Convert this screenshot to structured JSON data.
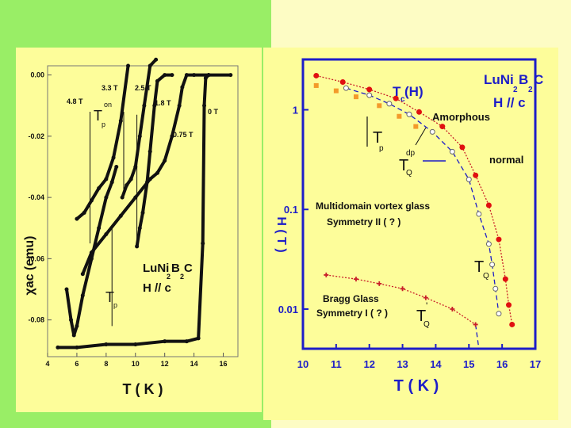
{
  "colors": {
    "left_bg": "#99ee66",
    "right_bg": "#fdfcc4",
    "panel": "#fdfd9a",
    "blue": "#1d1dc8",
    "red": "#e01010",
    "orange": "#f39a2a",
    "dark_red": "#c8202a",
    "black": "#111111"
  },
  "chart_data": [
    {
      "type": "line",
      "panel": "left",
      "ylabel": "χac (emu)",
      "xlabel": "T ( K )",
      "xlim": [
        4,
        17
      ],
      "ylim": [
        -0.092,
        0.003
      ],
      "xticks": [
        4,
        6,
        8,
        10,
        12,
        14,
        16
      ],
      "yticks": [
        0.0,
        -0.02,
        -0.04,
        -0.06,
        -0.08
      ],
      "ytick_labels": [
        "0.00",
        "-0.02",
        "-0.04",
        "-0.06",
        "-0.08"
      ],
      "series": [
        {
          "name": "0 T",
          "x": [
            4.7,
            6,
            8,
            10,
            12,
            13.5,
            14.3,
            14.6,
            14.7,
            14.8,
            15,
            16.5
          ],
          "y": [
            -0.089,
            -0.089,
            -0.088,
            -0.088,
            -0.087,
            -0.087,
            -0.086,
            -0.055,
            -0.01,
            -0.001,
            0.0,
            0.0
          ]
        },
        {
          "name": "0.75 T",
          "x": [
            6.4,
            7,
            8,
            9,
            10,
            11,
            11.5,
            12,
            12.5,
            13,
            13.2,
            13.5,
            14,
            15
          ],
          "y": [
            -0.065,
            -0.058,
            -0.052,
            -0.046,
            -0.04,
            -0.034,
            -0.032,
            -0.028,
            -0.02,
            -0.01,
            -0.004,
            0.0,
            0.0,
            0.0
          ]
        },
        {
          "name": "1.8 T",
          "x": [
            10.1,
            10.3,
            10.5,
            10.8,
            11,
            11.3,
            11.5,
            12,
            12.5
          ],
          "y": [
            -0.056,
            -0.05,
            -0.045,
            -0.035,
            -0.025,
            -0.01,
            -0.002,
            0.0,
            0.0
          ]
        },
        {
          "name": "2.5 T",
          "x": [
            9.1,
            9.4,
            9.7,
            10,
            10.3,
            10.6,
            11,
            11.4
          ],
          "y": [
            -0.04,
            -0.036,
            -0.034,
            -0.03,
            -0.02,
            -0.01,
            0.003,
            0.005
          ]
        },
        {
          "name": "3.3 T",
          "x": [
            6,
            6.5,
            7,
            7.5,
            8,
            8.5,
            9,
            9.5
          ],
          "y": [
            -0.047,
            -0.045,
            -0.041,
            -0.037,
            -0.034,
            -0.027,
            -0.015,
            0.003
          ]
        },
        {
          "name": "4.8 T",
          "x": [
            5.3,
            5.6,
            5.8,
            6,
            6.4,
            7,
            7.5,
            8,
            8.4,
            8.7
          ],
          "y": [
            -0.07,
            -0.08,
            -0.085,
            -0.082,
            -0.072,
            -0.06,
            -0.05,
            -0.04,
            -0.035,
            -0.03
          ]
        }
      ],
      "annotations": [
        "4.8 T",
        "3.3 T",
        "2.5 T",
        "1.8 T",
        "0.75 T",
        "0 T",
        "T",
        "p",
        "on",
        "T",
        "p",
        "LuNi",
        "2",
        "B",
        "2",
        "C",
        "H // c"
      ]
    },
    {
      "type": "scatter",
      "panel": "right",
      "ylabel": "H ( T )",
      "xlabel": "T ( K )",
      "xlim": [
        10,
        17
      ],
      "ylim_log": [
        0.004,
        3.2
      ],
      "xticks": [
        10,
        11,
        12,
        13,
        14,
        15,
        16,
        17
      ],
      "yticks": [
        1,
        0.1,
        0.01
      ],
      "ytick_labels": [
        "1",
        "0.1",
        "0.01"
      ],
      "series": [
        {
          "name": "Tc(H) red",
          "x": [
            10.4,
            11.2,
            12.0,
            12.8,
            13.5,
            14.2,
            14.8,
            15.2,
            15.6,
            15.9,
            16.1,
            16.2,
            16.3
          ],
          "y": [
            2.2,
            1.9,
            1.6,
            1.3,
            0.95,
            0.68,
            0.42,
            0.22,
            0.11,
            0.05,
            0.02,
            0.011,
            0.007
          ]
        },
        {
          "name": "orange squares",
          "x": [
            10.4,
            11.0,
            11.6,
            12.3,
            12.9,
            13.4
          ],
          "y": [
            1.75,
            1.55,
            1.35,
            1.1,
            0.86,
            0.68
          ]
        },
        {
          "name": "open symbols",
          "x": [
            11.3,
            12.0,
            12.6,
            13.2,
            13.9,
            14.5,
            15.0,
            15.3,
            15.6,
            15.7,
            15.8,
            15.9
          ],
          "y": [
            1.65,
            1.4,
            1.15,
            0.9,
            0.6,
            0.38,
            0.2,
            0.09,
            0.045,
            0.028,
            0.016,
            0.009
          ]
        },
        {
          "name": "Bragg glass boundary",
          "x": [
            10.7,
            11.6,
            12.3,
            13.0,
            13.7,
            14.5,
            15.2
          ],
          "y": [
            0.022,
            0.02,
            0.018,
            0.016,
            0.013,
            0.01,
            0.007
          ]
        }
      ],
      "annotations": [
        "LuNi",
        "2",
        "B",
        "2",
        "C",
        "H // c",
        "T",
        "c",
        "(H)",
        "Amorphous",
        "T",
        "p",
        "T",
        "dp",
        "Q",
        "normal",
        "Multidomain vortex glass",
        "Symmetry II ( ? )",
        "T",
        "Q",
        "Bragg Glass",
        "Symmetry I ( ? )",
        "T",
        "Q",
        "'"
      ]
    }
  ]
}
